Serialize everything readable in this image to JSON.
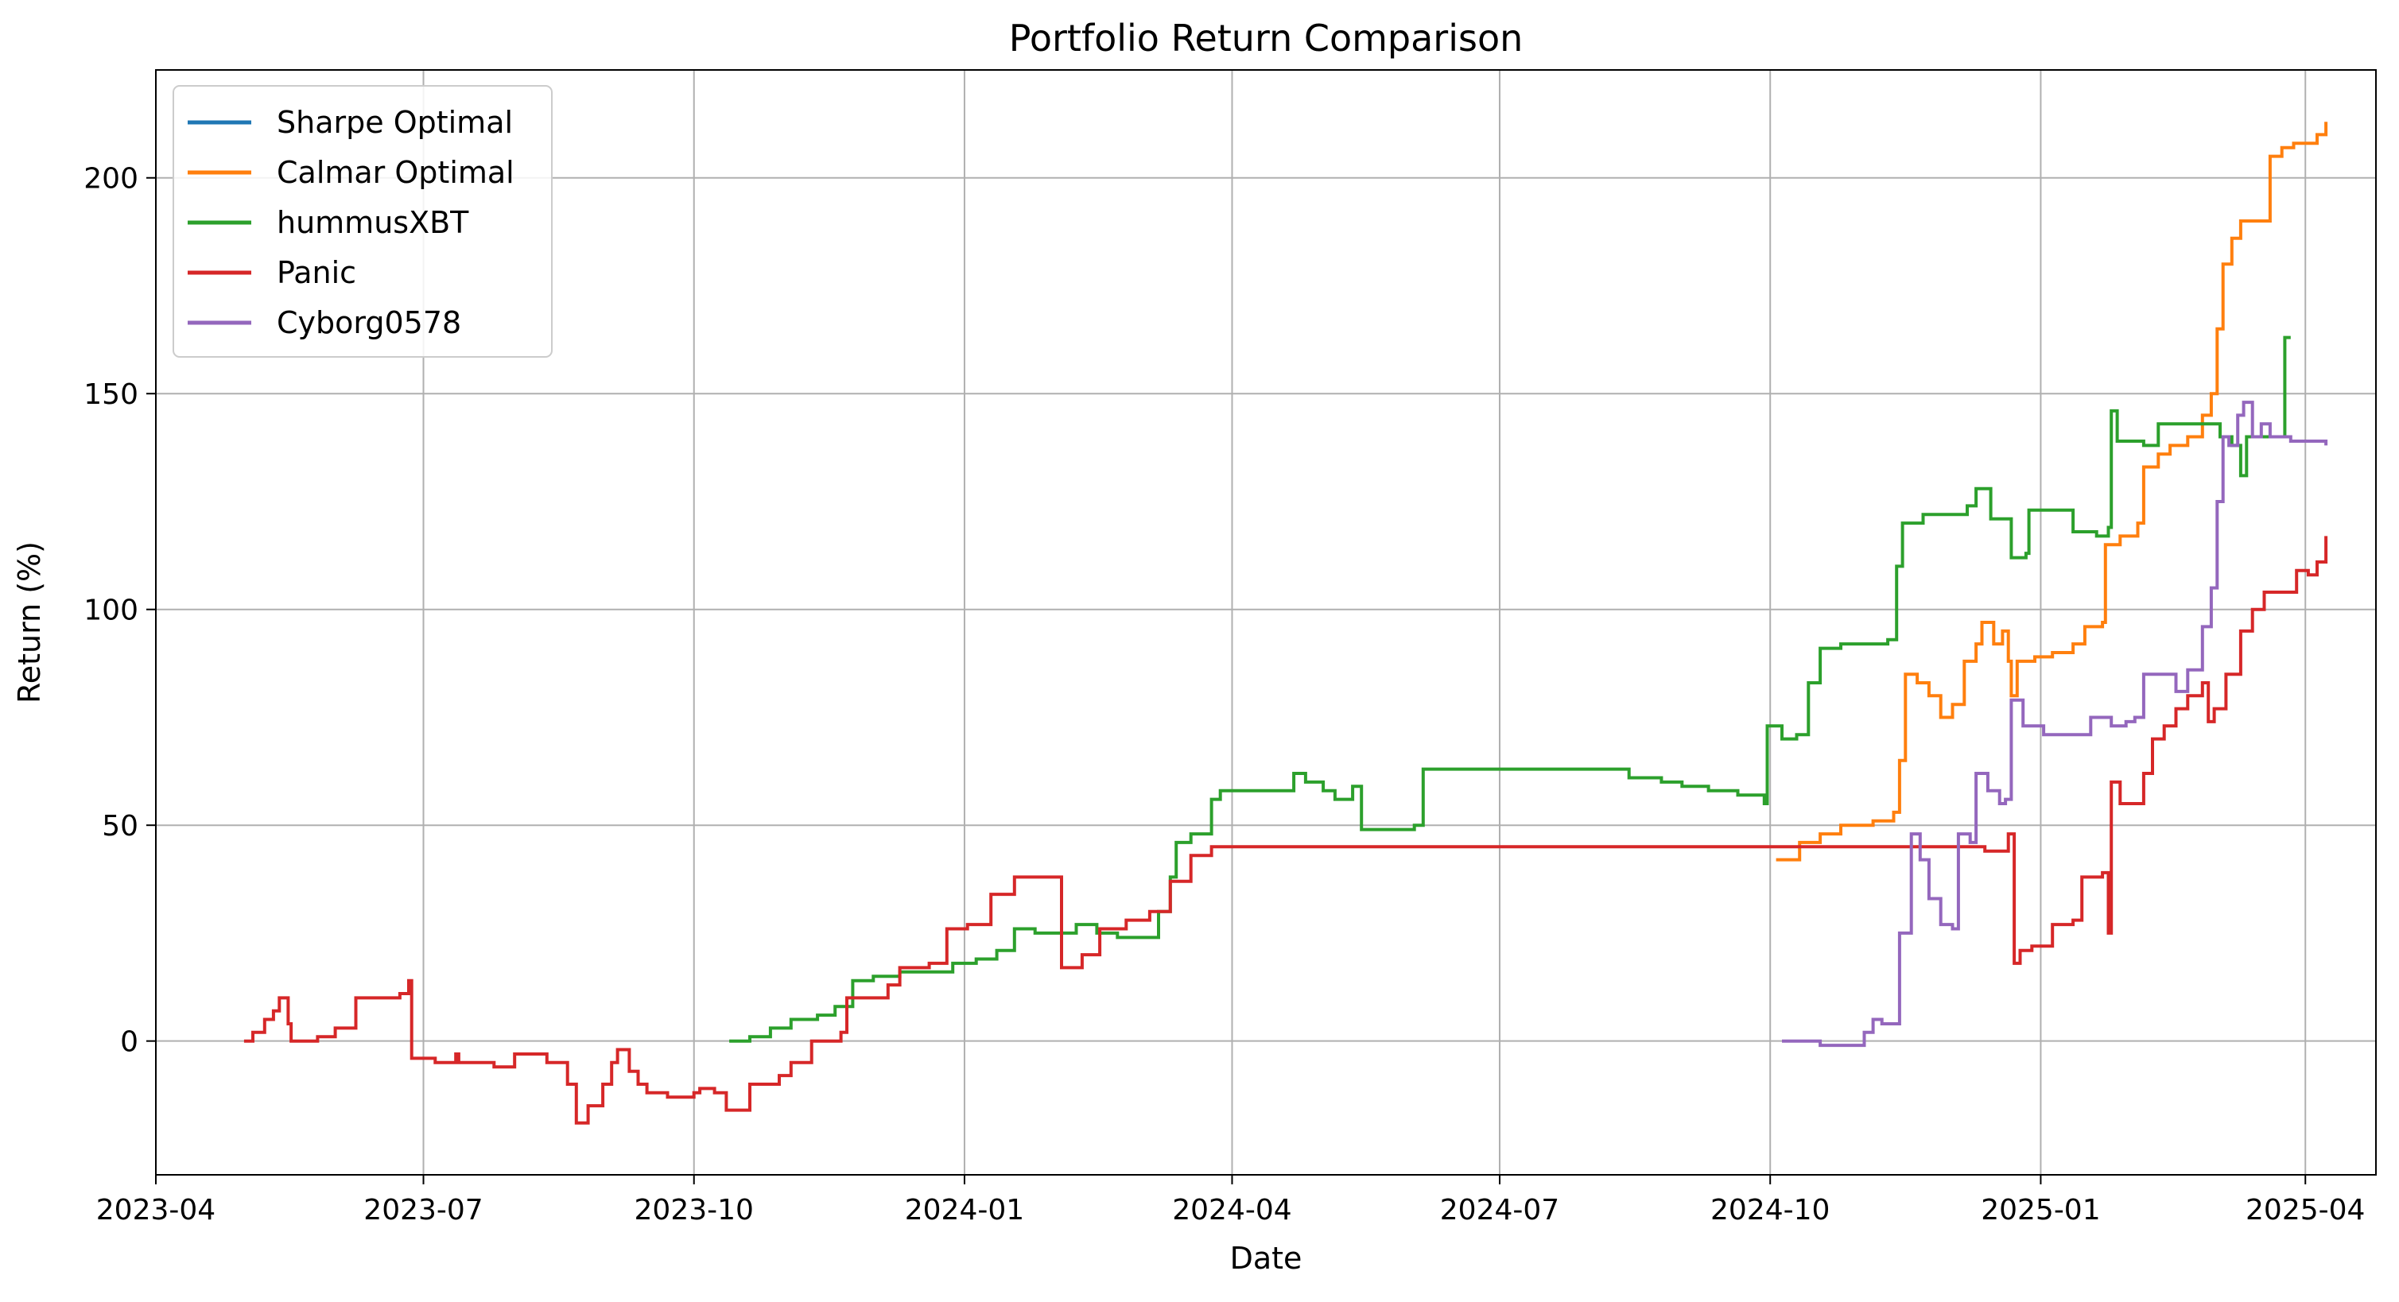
{
  "chart_data": {
    "type": "line",
    "title": "Portfolio Return Comparison",
    "xlabel": "Date",
    "ylabel": "Return (%)",
    "xlim": [
      "2023-04-01",
      "2025-04-25"
    ],
    "ylim": [
      -31,
      225
    ],
    "x_ticks": [
      {
        "date": "2023-04-01",
        "label": "2023-04"
      },
      {
        "date": "2023-07-01",
        "label": "2023-07"
      },
      {
        "date": "2023-10-01",
        "label": "2023-10"
      },
      {
        "date": "2024-01-01",
        "label": "2024-01"
      },
      {
        "date": "2024-04-01",
        "label": "2024-04"
      },
      {
        "date": "2024-07-01",
        "label": "2024-07"
      },
      {
        "date": "2024-10-01",
        "label": "2024-10"
      },
      {
        "date": "2025-01-01",
        "label": "2025-01"
      },
      {
        "date": "2025-04-01",
        "label": "2025-04"
      }
    ],
    "y_ticks": [
      0,
      50,
      100,
      150,
      200
    ],
    "grid": true,
    "legend_position": "top-left",
    "series": [
      {
        "name": "Sharpe Optimal",
        "color": "#1f77b4",
        "points": []
      },
      {
        "name": "Calmar Optimal",
        "color": "#ff7f0e",
        "points": [
          [
            "2024-10-03",
            42
          ],
          [
            "2024-10-10",
            42
          ],
          [
            "2024-10-11",
            46
          ],
          [
            "2024-10-18",
            48
          ],
          [
            "2024-10-25",
            50
          ],
          [
            "2024-11-05",
            51
          ],
          [
            "2024-11-12",
            53
          ],
          [
            "2024-11-14",
            65
          ],
          [
            "2024-11-16",
            85
          ],
          [
            "2024-11-20",
            83
          ],
          [
            "2024-11-24",
            80
          ],
          [
            "2024-11-28",
            75
          ],
          [
            "2024-12-02",
            78
          ],
          [
            "2024-12-06",
            88
          ],
          [
            "2024-12-10",
            92
          ],
          [
            "2024-12-12",
            97
          ],
          [
            "2024-12-16",
            92
          ],
          [
            "2024-12-19",
            95
          ],
          [
            "2024-12-21",
            88
          ],
          [
            "2024-12-22",
            80
          ],
          [
            "2024-12-24",
            88
          ],
          [
            "2024-12-30",
            89
          ],
          [
            "2025-01-05",
            90
          ],
          [
            "2025-01-12",
            92
          ],
          [
            "2025-01-16",
            96
          ],
          [
            "2025-01-22",
            97
          ],
          [
            "2025-01-23",
            115
          ],
          [
            "2025-01-28",
            117
          ],
          [
            "2025-02-03",
            120
          ],
          [
            "2025-02-05",
            133
          ],
          [
            "2025-02-10",
            136
          ],
          [
            "2025-02-14",
            138
          ],
          [
            "2025-02-20",
            140
          ],
          [
            "2025-02-25",
            145
          ],
          [
            "2025-02-28",
            150
          ],
          [
            "2025-03-02",
            165
          ],
          [
            "2025-03-04",
            180
          ],
          [
            "2025-03-07",
            186
          ],
          [
            "2025-03-10",
            190
          ],
          [
            "2025-03-14",
            190
          ],
          [
            "2025-03-18",
            190
          ],
          [
            "2025-03-20",
            205
          ],
          [
            "2025-03-24",
            207
          ],
          [
            "2025-03-28",
            208
          ],
          [
            "2025-04-02",
            208
          ],
          [
            "2025-04-05",
            210
          ],
          [
            "2025-04-08",
            213
          ]
        ]
      },
      {
        "name": "hummusXBT",
        "color": "#2ca02c",
        "points": [
          [
            "2023-10-13",
            0
          ],
          [
            "2023-10-20",
            1
          ],
          [
            "2023-10-27",
            3
          ],
          [
            "2023-11-03",
            5
          ],
          [
            "2023-11-12",
            6
          ],
          [
            "2023-11-18",
            8
          ],
          [
            "2023-11-24",
            14
          ],
          [
            "2023-12-01",
            15
          ],
          [
            "2023-12-10",
            16
          ],
          [
            "2023-12-20",
            16
          ],
          [
            "2023-12-28",
            18
          ],
          [
            "2024-01-05",
            19
          ],
          [
            "2024-01-12",
            21
          ],
          [
            "2024-01-18",
            26
          ],
          [
            "2024-01-25",
            25
          ],
          [
            "2024-02-01",
            25
          ],
          [
            "2024-02-08",
            27
          ],
          [
            "2024-02-15",
            25
          ],
          [
            "2024-02-22",
            24
          ],
          [
            "2024-03-01",
            24
          ],
          [
            "2024-03-07",
            30
          ],
          [
            "2024-03-11",
            38
          ],
          [
            "2024-03-13",
            46
          ],
          [
            "2024-03-18",
            48
          ],
          [
            "2024-03-25",
            56
          ],
          [
            "2024-03-28",
            58
          ],
          [
            "2024-04-08",
            58
          ],
          [
            "2024-04-15",
            58
          ],
          [
            "2024-04-22",
            62
          ],
          [
            "2024-04-26",
            60
          ],
          [
            "2024-05-02",
            58
          ],
          [
            "2024-05-06",
            56
          ],
          [
            "2024-05-12",
            59
          ],
          [
            "2024-05-15",
            49
          ],
          [
            "2024-05-22",
            49
          ],
          [
            "2024-06-02",
            50
          ],
          [
            "2024-06-05",
            63
          ],
          [
            "2024-07-10",
            63
          ],
          [
            "2024-08-13",
            63
          ],
          [
            "2024-08-14",
            61
          ],
          [
            "2024-08-25",
            60
          ],
          [
            "2024-09-01",
            59
          ],
          [
            "2024-09-10",
            58
          ],
          [
            "2024-09-20",
            57
          ],
          [
            "2024-09-29",
            55
          ],
          [
            "2024-09-30",
            73
          ],
          [
            "2024-10-05",
            70
          ],
          [
            "2024-10-10",
            71
          ],
          [
            "2024-10-14",
            83
          ],
          [
            "2024-10-18",
            91
          ],
          [
            "2024-10-25",
            92
          ],
          [
            "2024-11-04",
            92
          ],
          [
            "2024-11-10",
            93
          ],
          [
            "2024-11-13",
            110
          ],
          [
            "2024-11-15",
            120
          ],
          [
            "2024-11-22",
            122
          ],
          [
            "2024-12-01",
            122
          ],
          [
            "2024-12-07",
            124
          ],
          [
            "2024-12-10",
            128
          ],
          [
            "2024-12-15",
            121
          ],
          [
            "2024-12-22",
            112
          ],
          [
            "2024-12-27",
            113
          ],
          [
            "2024-12-28",
            123
          ],
          [
            "2025-01-05",
            123
          ],
          [
            "2025-01-12",
            118
          ],
          [
            "2025-01-20",
            117
          ],
          [
            "2025-01-24",
            119
          ],
          [
            "2025-01-25",
            146
          ],
          [
            "2025-01-27",
            139
          ],
          [
            "2025-02-05",
            138
          ],
          [
            "2025-02-10",
            143
          ],
          [
            "2025-02-20",
            143
          ],
          [
            "2025-02-28",
            143
          ],
          [
            "2025-03-03",
            140
          ],
          [
            "2025-03-07",
            138
          ],
          [
            "2025-03-10",
            131
          ],
          [
            "2025-03-12",
            140
          ],
          [
            "2025-03-20",
            140
          ],
          [
            "2025-03-24",
            140
          ],
          [
            "2025-03-25",
            163
          ],
          [
            "2025-03-27",
            163
          ]
        ]
      },
      {
        "name": "Panic",
        "color": "#d62728",
        "points": [
          [
            "2023-05-01",
            0
          ],
          [
            "2023-05-04",
            2
          ],
          [
            "2023-05-08",
            5
          ],
          [
            "2023-05-11",
            7
          ],
          [
            "2023-05-13",
            10
          ],
          [
            "2023-05-16",
            4
          ],
          [
            "2023-05-17",
            0
          ],
          [
            "2023-05-24",
            0
          ],
          [
            "2023-05-26",
            1
          ],
          [
            "2023-06-01",
            3
          ],
          [
            "2023-06-07",
            3
          ],
          [
            "2023-06-08",
            10
          ],
          [
            "2023-06-23",
            11
          ],
          [
            "2023-06-25",
            11
          ],
          [
            "2023-06-26",
            14
          ],
          [
            "2023-06-27",
            -4
          ],
          [
            "2023-07-05",
            -5
          ],
          [
            "2023-07-10",
            -5
          ],
          [
            "2023-07-12",
            -3
          ],
          [
            "2023-07-13",
            -5
          ],
          [
            "2023-07-25",
            -6
          ],
          [
            "2023-08-01",
            -3
          ],
          [
            "2023-08-08",
            -3
          ],
          [
            "2023-08-12",
            -5
          ],
          [
            "2023-08-17",
            -5
          ],
          [
            "2023-08-19",
            -10
          ],
          [
            "2023-08-22",
            -19
          ],
          [
            "2023-08-26",
            -15
          ],
          [
            "2023-08-31",
            -10
          ],
          [
            "2023-09-03",
            -5
          ],
          [
            "2023-09-05",
            -2
          ],
          [
            "2023-09-09",
            -7
          ],
          [
            "2023-09-12",
            -10
          ],
          [
            "2023-09-15",
            -12
          ],
          [
            "2023-09-22",
            -13
          ],
          [
            "2023-10-01",
            -12
          ],
          [
            "2023-10-03",
            -11
          ],
          [
            "2023-10-08",
            -12
          ],
          [
            "2023-10-12",
            -16
          ],
          [
            "2023-10-18",
            -16
          ],
          [
            "2023-10-20",
            -10
          ],
          [
            "2023-10-27",
            -10
          ],
          [
            "2023-10-30",
            -8
          ],
          [
            "2023-11-03",
            -5
          ],
          [
            "2023-11-10",
            0
          ],
          [
            "2023-11-20",
            2
          ],
          [
            "2023-11-22",
            10
          ],
          [
            "2023-11-30",
            10
          ],
          [
            "2023-12-06",
            13
          ],
          [
            "2023-12-10",
            17
          ],
          [
            "2023-12-20",
            18
          ],
          [
            "2023-12-26",
            26
          ],
          [
            "2024-01-02",
            27
          ],
          [
            "2024-01-06",
            27
          ],
          [
            "2024-01-10",
            34
          ],
          [
            "2024-01-18",
            38
          ],
          [
            "2024-01-27",
            38
          ],
          [
            "2024-02-01",
            38
          ],
          [
            "2024-02-03",
            17
          ],
          [
            "2024-02-10",
            20
          ],
          [
            "2024-02-16",
            26
          ],
          [
            "2024-02-25",
            28
          ],
          [
            "2024-03-04",
            30
          ],
          [
            "2024-03-11",
            37
          ],
          [
            "2024-03-18",
            43
          ],
          [
            "2024-03-25",
            45
          ],
          [
            "2024-07-01",
            45
          ],
          [
            "2024-10-01",
            45
          ],
          [
            "2024-11-10",
            45
          ],
          [
            "2024-12-12",
            45
          ],
          [
            "2024-12-13",
            44
          ],
          [
            "2024-12-20",
            44
          ],
          [
            "2024-12-21",
            48
          ],
          [
            "2024-12-23",
            18
          ],
          [
            "2024-12-25",
            21
          ],
          [
            "2024-12-29",
            22
          ],
          [
            "2025-01-05",
            27
          ],
          [
            "2025-01-12",
            28
          ],
          [
            "2025-01-15",
            38
          ],
          [
            "2025-01-22",
            39
          ],
          [
            "2025-01-24",
            25
          ],
          [
            "2025-01-25",
            60
          ],
          [
            "2025-01-28",
            55
          ],
          [
            "2025-02-05",
            62
          ],
          [
            "2025-02-08",
            70
          ],
          [
            "2025-02-12",
            73
          ],
          [
            "2025-02-16",
            77
          ],
          [
            "2025-02-20",
            80
          ],
          [
            "2025-02-25",
            83
          ],
          [
            "2025-02-27",
            74
          ],
          [
            "2025-03-01",
            77
          ],
          [
            "2025-03-05",
            85
          ],
          [
            "2025-03-10",
            95
          ],
          [
            "2025-03-14",
            100
          ],
          [
            "2025-03-18",
            104
          ],
          [
            "2025-03-24",
            104
          ],
          [
            "2025-03-29",
            109
          ],
          [
            "2025-04-02",
            108
          ],
          [
            "2025-04-05",
            111
          ],
          [
            "2025-04-08",
            117
          ]
        ]
      },
      {
        "name": "Cyborg0578",
        "color": "#9467bd",
        "points": [
          [
            "2024-10-05",
            0
          ],
          [
            "2024-10-12",
            0
          ],
          [
            "2024-10-18",
            -1
          ],
          [
            "2024-10-28",
            -1
          ],
          [
            "2024-11-02",
            2
          ],
          [
            "2024-11-05",
            5
          ],
          [
            "2024-11-08",
            4
          ],
          [
            "2024-11-12",
            4
          ],
          [
            "2024-11-14",
            25
          ],
          [
            "2024-11-18",
            48
          ],
          [
            "2024-11-21",
            42
          ],
          [
            "2024-11-24",
            33
          ],
          [
            "2024-11-28",
            27
          ],
          [
            "2024-12-02",
            26
          ],
          [
            "2024-12-04",
            48
          ],
          [
            "2024-12-08",
            46
          ],
          [
            "2024-12-10",
            62
          ],
          [
            "2024-12-14",
            58
          ],
          [
            "2024-12-18",
            55
          ],
          [
            "2024-12-20",
            56
          ],
          [
            "2024-12-22",
            79
          ],
          [
            "2024-12-26",
            73
          ],
          [
            "2025-01-02",
            71
          ],
          [
            "2025-01-10",
            71
          ],
          [
            "2025-01-18",
            75
          ],
          [
            "2025-01-25",
            73
          ],
          [
            "2025-01-30",
            74
          ],
          [
            "2025-02-02",
            75
          ],
          [
            "2025-02-05",
            85
          ],
          [
            "2025-02-12",
            85
          ],
          [
            "2025-02-16",
            81
          ],
          [
            "2025-02-20",
            86
          ],
          [
            "2025-02-25",
            96
          ],
          [
            "2025-02-28",
            105
          ],
          [
            "2025-03-02",
            125
          ],
          [
            "2025-03-04",
            140
          ],
          [
            "2025-03-06",
            138
          ],
          [
            "2025-03-09",
            145
          ],
          [
            "2025-03-11",
            148
          ],
          [
            "2025-03-14",
            140
          ],
          [
            "2025-03-17",
            143
          ],
          [
            "2025-03-20",
            140
          ],
          [
            "2025-03-27",
            139
          ],
          [
            "2025-04-03",
            139
          ],
          [
            "2025-04-08",
            138
          ]
        ]
      }
    ]
  }
}
